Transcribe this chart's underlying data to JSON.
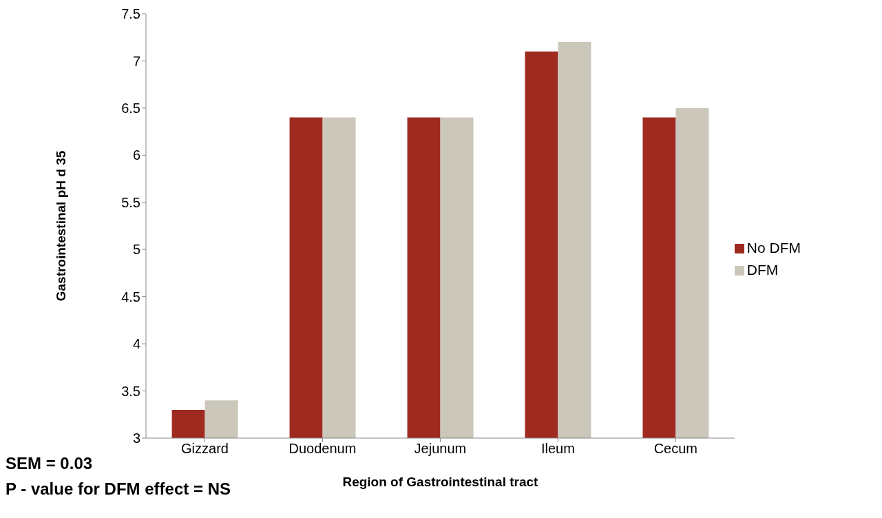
{
  "chart_data": {
    "type": "bar",
    "xlabel": "Region of Gastrointestinal tract",
    "ylabel": "Gastrointestinal pH d 35",
    "categories": [
      "Gizzard",
      "Duodenum",
      "Jejunum",
      "Ileum",
      "Cecum"
    ],
    "series": [
      {
        "name": "No DFM",
        "color": "#9e2a20",
        "values": [
          3.3,
          6.4,
          6.4,
          7.1,
          6.4
        ]
      },
      {
        "name": "DFM",
        "color": "#cbc7bb",
        "values": [
          3.4,
          6.4,
          6.4,
          7.2,
          6.5
        ]
      }
    ],
    "ylim": [
      3,
      7.5
    ],
    "yticks": [
      3,
      3.5,
      4,
      4.5,
      5,
      5.5,
      6,
      6.5,
      7,
      7.5
    ],
    "legend": "right",
    "annotations": [
      "SEM = 0.03",
      "P - value for DFM effect = NS"
    ]
  }
}
